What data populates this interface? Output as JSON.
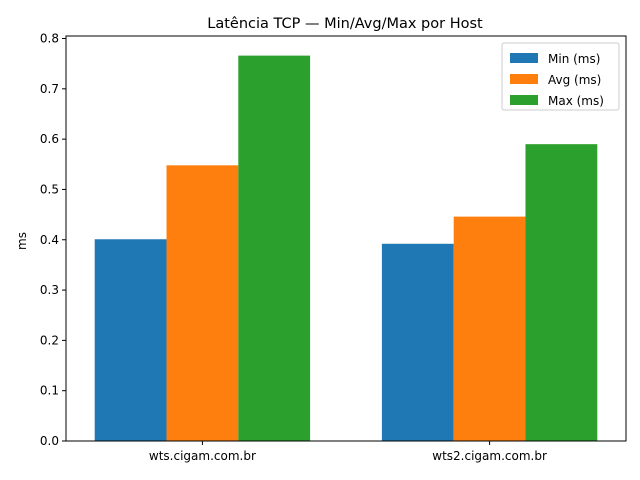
{
  "chart_data": {
    "type": "bar",
    "title": "Latência TCP — Min/Avg/Max por Host",
    "xlabel": "",
    "ylabel": "ms",
    "categories": [
      "wts.cigam.com.br",
      "wts2.cigam.com.br"
    ],
    "series": [
      {
        "name": "Min (ms)",
        "values": [
          0.401,
          0.392
        ],
        "color": "#1f77b4"
      },
      {
        "name": "Avg (ms)",
        "values": [
          0.548,
          0.446
        ],
        "color": "#ff7f0e"
      },
      {
        "name": "Max (ms)",
        "values": [
          0.766,
          0.59
        ],
        "color": "#2ca02c"
      }
    ],
    "ylim": [
      0,
      0.805
    ],
    "yticks": [
      0.0,
      0.1,
      0.2,
      0.3,
      0.4,
      0.5,
      0.6,
      0.7,
      0.8
    ],
    "ytick_labels": [
      "0.0",
      "0.1",
      "0.2",
      "0.3",
      "0.4",
      "0.5",
      "0.6",
      "0.7",
      "0.8"
    ],
    "grid": false,
    "legend": "top-right"
  }
}
